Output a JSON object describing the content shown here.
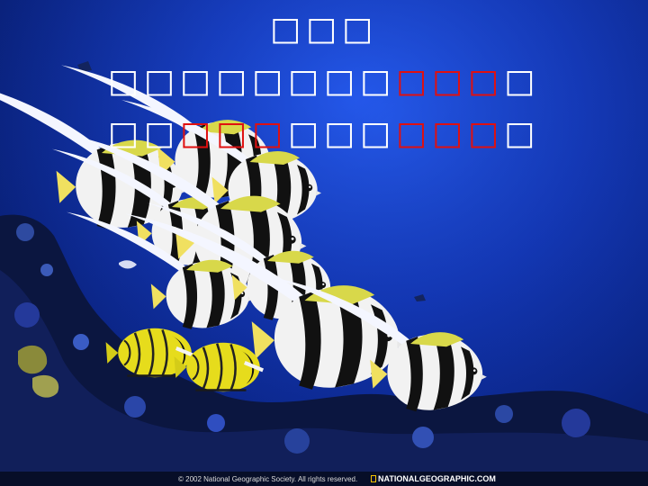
{
  "text": {
    "line1": "□□□",
    "line2": {
      "white": "□□□□□□□□",
      "red": "□□□",
      "end": "□"
    },
    "line3": {
      "white_a": "□□",
      "red_a": "□□□",
      "white_b": "□□□",
      "red_b": "□□□",
      "end": "□"
    }
  },
  "footer": {
    "copyright": "© 2002 National Geographic Society. All rights reserved.",
    "brand": "NATIONALGEOGRAPHIC.COM"
  },
  "colors": {
    "text_white": "#ffffff",
    "text_red": "#e01010",
    "water": "#1236b4",
    "brand_yellow": "#f5c400"
  }
}
